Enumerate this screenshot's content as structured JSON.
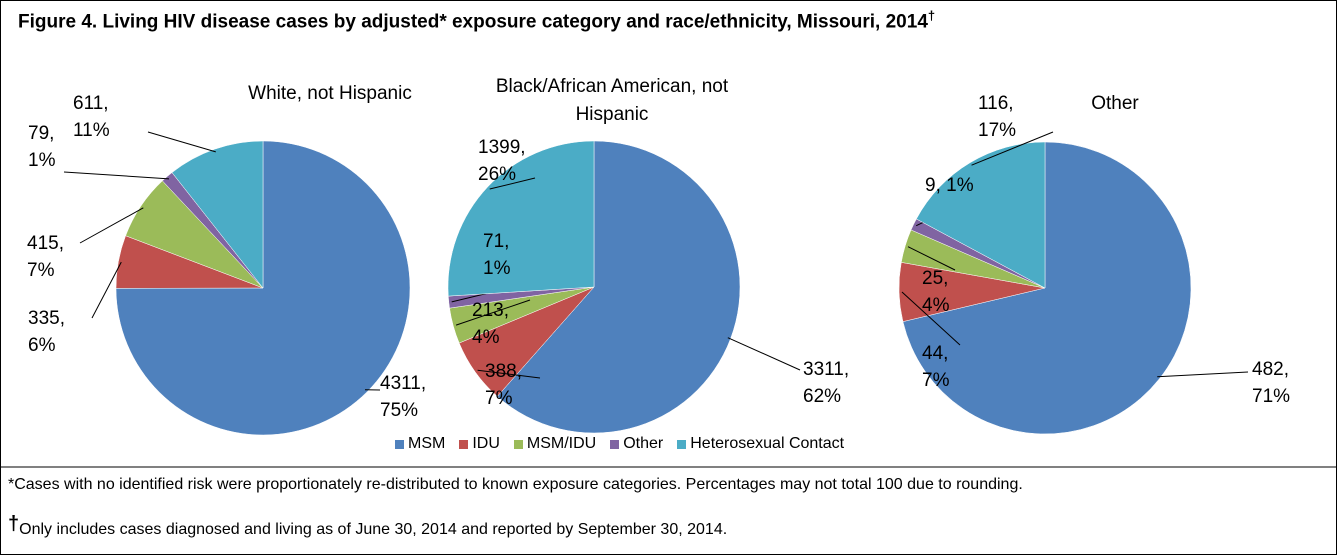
{
  "title": "Figure 4.  Living HIV disease cases by adjusted* exposure category and race/ethnicity, Missouri, 2014",
  "title_mark": "†",
  "chart_data": [
    {
      "type": "pie",
      "title": "White, not Hispanic",
      "categories": [
        "MSM",
        "IDU",
        "MSM/IDU",
        "Other",
        "Heterosexual Contact"
      ],
      "colors": [
        "#4f81bd",
        "#c0504d",
        "#9bbb59",
        "#8064a2",
        "#4bacc6"
      ],
      "values": [
        4311,
        335,
        415,
        79,
        611
      ],
      "value_labels": [
        "4311, 75%",
        "335, 6%",
        "415, 7%",
        "79, 1%",
        "611, 11%"
      ]
    },
    {
      "type": "pie",
      "title": "Black/African American, not Hispanic",
      "categories": [
        "MSM",
        "IDU",
        "MSM/IDU",
        "Other",
        "Heterosexual Contact"
      ],
      "colors": [
        "#4f81bd",
        "#c0504d",
        "#9bbb59",
        "#8064a2",
        "#4bacc6"
      ],
      "values": [
        3311,
        388,
        213,
        71,
        1399
      ],
      "value_labels": [
        "3311, 62%",
        "388, 7%",
        "213, 4%",
        "71, 1%",
        "1399, 26%"
      ]
    },
    {
      "type": "pie",
      "title": "Other",
      "categories": [
        "MSM",
        "IDU",
        "MSM/IDU",
        "Other",
        "Heterosexual Contact"
      ],
      "colors": [
        "#4f81bd",
        "#c0504d",
        "#9bbb59",
        "#8064a2",
        "#4bacc6"
      ],
      "values": [
        482,
        44,
        25,
        9,
        116
      ],
      "value_labels": [
        "482, 71%",
        "44, 7%",
        "25, 4%",
        "9, 1%",
        "116, 17%"
      ]
    }
  ],
  "footnotes": [
    "*Cases with no identified risk were proportionately re-distributed to known exposure categories. Percentages may not total 100 due to rounding."
  ],
  "footnote_mark": "†",
  "footnote_marked": "Only includes cases diagnosed and living as of June 30, 2014 and reported by September 30, 2014."
}
